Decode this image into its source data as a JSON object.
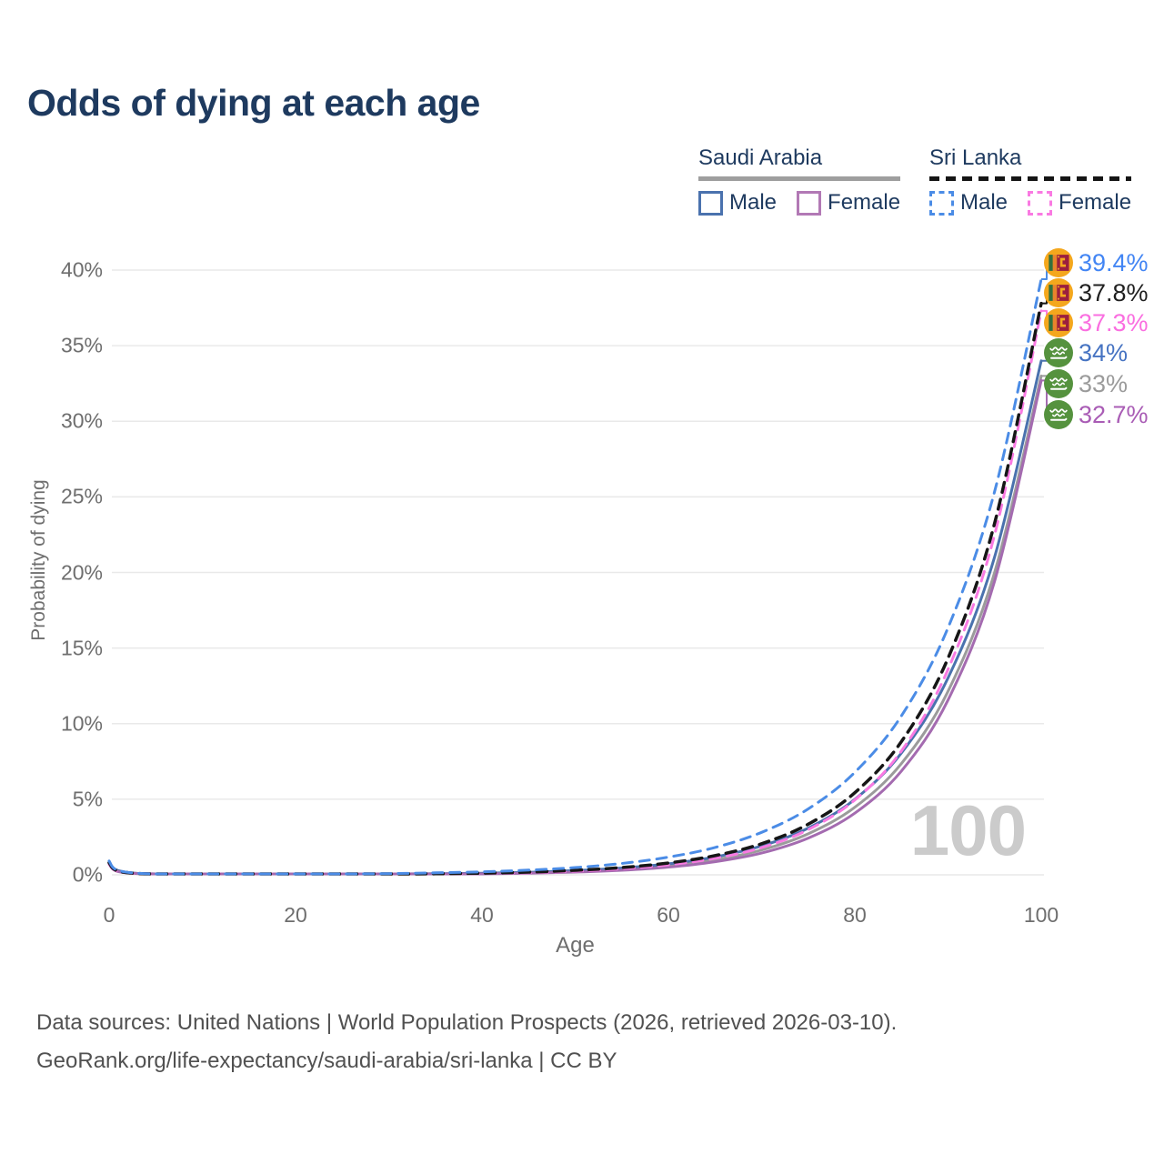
{
  "title": "Odds of dying at each age",
  "age_indicator": "100",
  "legend": {
    "groups": [
      {
        "country": "Saudi Arabia",
        "line_style": "solid",
        "underline_color": "#9e9e9e",
        "items": [
          {
            "label": "Male",
            "color": "#4a72ae"
          },
          {
            "label": "Female",
            "color": "#b279b5"
          }
        ]
      },
      {
        "country": "Sri Lanka",
        "line_style": "dashed",
        "underline_color": "#151515",
        "items": [
          {
            "label": "Male",
            "color": "#4b8ce6"
          },
          {
            "label": "Female",
            "color": "#f97ae2"
          }
        ]
      }
    ]
  },
  "chart_data": {
    "type": "line",
    "title": "Odds of dying at each age",
    "xlabel": "Age",
    "ylabel": "Probability of dying",
    "xlim": [
      0,
      100
    ],
    "ylim": [
      0,
      40
    ],
    "grid": true,
    "legend_position": "top-right",
    "x_ticks": [
      "0",
      "20",
      "40",
      "60",
      "80",
      "100"
    ],
    "y_ticks": [
      "0%",
      "5%",
      "10%",
      "15%",
      "20%",
      "25%",
      "30%",
      "35%",
      "40%"
    ],
    "ages": [
      0,
      1,
      5,
      10,
      15,
      20,
      25,
      30,
      35,
      40,
      45,
      50,
      55,
      60,
      65,
      70,
      75,
      80,
      85,
      90,
      95,
      100
    ],
    "series": [
      {
        "name": "Saudi Arabia Both sexes",
        "country": "Saudi Arabia",
        "sex": "both",
        "color": "#9b9b9b",
        "dashed": false,
        "width": 3,
        "end_label": "33%",
        "end_label_color": "#9b9b9b",
        "flag": "saudi_arabia",
        "values": [
          0.8,
          0.24,
          0.01,
          0.01,
          0.01,
          0.01,
          0.02,
          0.03,
          0.05,
          0.08,
          0.14,
          0.22,
          0.37,
          0.6,
          1.0,
          1.64,
          2.71,
          4.47,
          7.36,
          12.14,
          20.02,
          33.0
        ]
      },
      {
        "name": "Saudi Arabia Male",
        "country": "Saudi Arabia",
        "sex": "male",
        "color": "#4a72ae",
        "dashed": false,
        "width": 3,
        "end_label": "34%",
        "end_label_color": "#4673c2",
        "flag": "saudi_arabia",
        "values": [
          0.9,
          0.27,
          0.01,
          0.01,
          0.01,
          0.02,
          0.03,
          0.04,
          0.07,
          0.11,
          0.17,
          0.28,
          0.45,
          0.73,
          1.18,
          1.91,
          3.09,
          4.99,
          8.06,
          13.02,
          21.04,
          34.0
        ]
      },
      {
        "name": "Saudi Arabia Female",
        "country": "Saudi Arabia",
        "sex": "female",
        "color": "#a46bb0",
        "dashed": false,
        "width": 3,
        "end_label": "32.7%",
        "end_label_color": "#a95cb5",
        "flag": "saudi_arabia",
        "values": [
          0.7,
          0.21,
          0.01,
          0.01,
          0.01,
          0.01,
          0.01,
          0.02,
          0.04,
          0.06,
          0.11,
          0.18,
          0.3,
          0.51,
          0.86,
          1.44,
          2.43,
          4.08,
          6.87,
          11.56,
          19.44,
          32.7
        ]
      },
      {
        "name": "Sri Lanka Female",
        "country": "Sri Lanka",
        "sex": "female",
        "color": "#f97ae2",
        "dashed": true,
        "width": 3,
        "end_label": "37.3%",
        "end_label_color": "#fa6ee0",
        "flag": "sri_lanka",
        "values": [
          0.7,
          0.21,
          0.01,
          0.01,
          0.01,
          0.01,
          0.02,
          0.03,
          0.05,
          0.09,
          0.14,
          0.24,
          0.4,
          0.66,
          1.09,
          1.8,
          2.99,
          4.95,
          8.2,
          13.59,
          22.51,
          37.3
        ]
      },
      {
        "name": "Sri Lanka Both sexes",
        "country": "Sri Lanka",
        "sex": "both",
        "color": "#161616",
        "dashed": true,
        "width": 3.5,
        "end_label": "37.8%",
        "end_label_color": "#1f1f1f",
        "flag": "sri_lanka",
        "values": [
          0.8,
          0.24,
          0.01,
          0.01,
          0.01,
          0.02,
          0.03,
          0.04,
          0.07,
          0.11,
          0.18,
          0.3,
          0.48,
          0.78,
          1.27,
          2.06,
          3.35,
          5.43,
          8.82,
          14.33,
          23.27,
          37.8
        ]
      },
      {
        "name": "Sri Lanka Male",
        "country": "Sri Lanka",
        "sex": "male",
        "color": "#4b8ce6",
        "dashed": true,
        "width": 3,
        "end_label": "39.4%",
        "end_label_color": "#4285f4",
        "flag": "sri_lanka",
        "values": [
          0.91,
          0.28,
          0.01,
          0.01,
          0.02,
          0.03,
          0.05,
          0.08,
          0.13,
          0.2,
          0.31,
          0.48,
          0.75,
          1.17,
          1.81,
          2.81,
          4.36,
          6.78,
          10.52,
          16.34,
          25.37,
          39.4
        ]
      }
    ],
    "end_label_order_top_to_bottom": [
      "39.4%",
      "37.8%",
      "37.3%",
      "34%",
      "33%",
      "32.7%"
    ]
  },
  "flags": {
    "sri_lanka": {
      "gold": "#f4a71d",
      "green": "#33703d",
      "orange": "#e8842c",
      "maroon": "#9b1f3f"
    },
    "saudi_arabia": {
      "green": "#55923e",
      "white": "#ffffff"
    }
  },
  "footer": {
    "line1": "Data sources: United Nations | World Population Prospects (2026, retrieved 2026-03-10).",
    "line2": "GeoRank.org/life-expectancy/saudi-arabia/sri-lanka | CC BY"
  }
}
